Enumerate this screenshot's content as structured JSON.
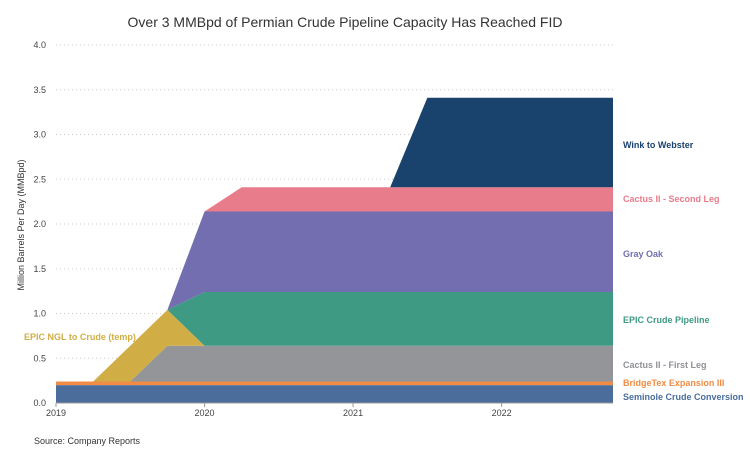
{
  "chart_data": {
    "type": "area",
    "stacked": true,
    "title": "Over 3 MMBpd of Permian Crude Pipeline Capacity Has Reached FID",
    "xlabel": "",
    "ylabel": "Million Barrels Per Day (MMBpd)",
    "source": "Source: Company Reports",
    "xlim": [
      2019,
      2022.75
    ],
    "ylim": [
      0,
      4.0
    ],
    "x_ticks": [
      2019,
      2020,
      2021,
      2022
    ],
    "x_tick_labels": [
      "2019",
      "2020",
      "2021",
      "2022"
    ],
    "y_ticks": [
      0,
      0.5,
      1.0,
      1.5,
      2.0,
      2.5,
      3.0,
      3.5,
      4.0
    ],
    "y_tick_labels": [
      "0.0",
      "0.5",
      "1.0",
      "1.5",
      "2.0",
      "2.5",
      "3.0",
      "3.5",
      "4.0"
    ],
    "grid": "horizontal-dotted",
    "x": [
      2019,
      2019.25,
      2019.5,
      2019.75,
      2020,
      2020.25,
      2021.25,
      2021.5,
      2022.75
    ],
    "series": [
      {
        "name": "Seminole Crude Conversion",
        "color": "#4a6d9c",
        "values": [
          0.2,
          0.2,
          0.2,
          0.2,
          0.2,
          0.2,
          0.2,
          0.2,
          0.2
        ]
      },
      {
        "name": "BridgeTex Expansion III",
        "color": "#f08c45",
        "values": [
          0.04,
          0.04,
          0.04,
          0.04,
          0.04,
          0.04,
          0.04,
          0.04,
          0.04
        ]
      },
      {
        "name": "Cactus II - First Leg",
        "color": "#939598",
        "label_color": "#8f9194",
        "values": [
          0,
          0,
          0,
          0.4,
          0.4,
          0.4,
          0.4,
          0.4,
          0.4
        ]
      },
      {
        "name": "EPIC NGL to Crude (temp)",
        "color": "#d1ae45",
        "values": [
          0,
          0,
          0.4,
          0.4,
          0,
          0,
          0,
          0,
          0
        ]
      },
      {
        "name": "EPIC Crude Pipeline",
        "color": "#3f9a84",
        "values": [
          0,
          0,
          0,
          0,
          0.6,
          0.6,
          0.6,
          0.6,
          0.6
        ]
      },
      {
        "name": "Gray Oak",
        "color": "#726eb0",
        "values": [
          0,
          0,
          0,
          0,
          0.9,
          0.9,
          0.9,
          0.9,
          0.9
        ]
      },
      {
        "name": "Cactus II - Second Leg",
        "color": "#e87c8b",
        "values": [
          0,
          0,
          0,
          0,
          0,
          0.27,
          0.27,
          0.27,
          0.27
        ]
      },
      {
        "name": "Wink to Webster",
        "color": "#19426d",
        "values": [
          0,
          0,
          0,
          0,
          0,
          0,
          0,
          1.0,
          1.0
        ]
      }
    ]
  }
}
